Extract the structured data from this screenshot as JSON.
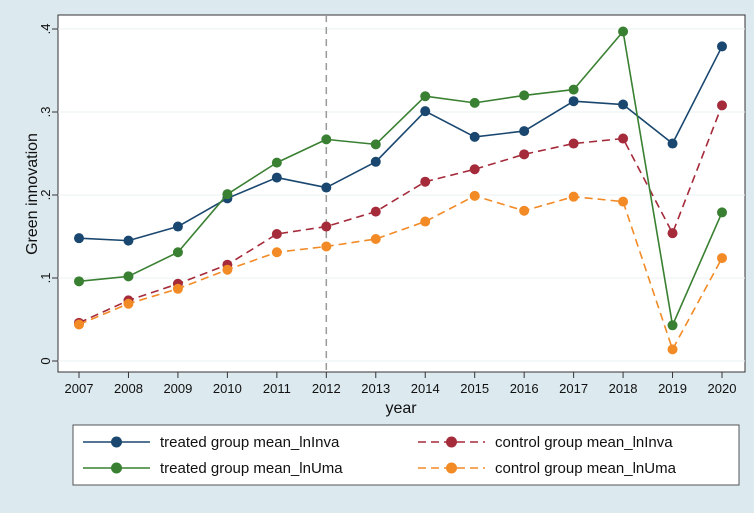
{
  "chart_data": {
    "type": "line",
    "title": "",
    "xlabel": "year",
    "ylabel": "Green innovation",
    "categories": [
      "2007",
      "2008",
      "2009",
      "2010",
      "2011",
      "2012",
      "2013",
      "2014",
      "2015",
      "2016",
      "2017",
      "2018",
      "2019",
      "2020"
    ],
    "yticks": [
      0,
      0.1,
      0.2,
      0.3,
      0.4
    ],
    "ytick_labels": [
      "0",
      ".1",
      ".2",
      ".3",
      ".4"
    ],
    "ylim": [
      0,
      0.4
    ],
    "reference_line": {
      "x": "2012",
      "style": "dashed",
      "color": "#999999"
    },
    "legend_position": "bottom",
    "series": [
      {
        "name": "treated group mean_lnInva",
        "color": "#1a476f",
        "dashed": false,
        "values": [
          0.148,
          0.145,
          0.162,
          0.196,
          0.221,
          0.209,
          0.24,
          0.301,
          0.27,
          0.277,
          0.313,
          0.309,
          0.262,
          0.379
        ]
      },
      {
        "name": "treated group mean_lnUma",
        "color": "#3a8032",
        "dashed": false,
        "values": [
          0.096,
          0.102,
          0.131,
          0.201,
          0.239,
          0.267,
          0.261,
          0.319,
          0.311,
          0.32,
          0.327,
          0.397,
          0.043,
          0.179
        ]
      },
      {
        "name": "control group mean_lnInva",
        "color": "#a52a3a",
        "dashed": true,
        "values": [
          0.046,
          0.073,
          0.093,
          0.116,
          0.153,
          0.162,
          0.18,
          0.216,
          0.231,
          0.249,
          0.262,
          0.268,
          0.154,
          0.308
        ]
      },
      {
        "name": "control group mean_lnUma",
        "color": "#f28a26",
        "dashed": true,
        "values": [
          0.044,
          0.069,
          0.087,
          0.11,
          0.131,
          0.138,
          0.147,
          0.168,
          0.199,
          0.181,
          0.198,
          0.192,
          0.014,
          0.124
        ]
      }
    ]
  }
}
